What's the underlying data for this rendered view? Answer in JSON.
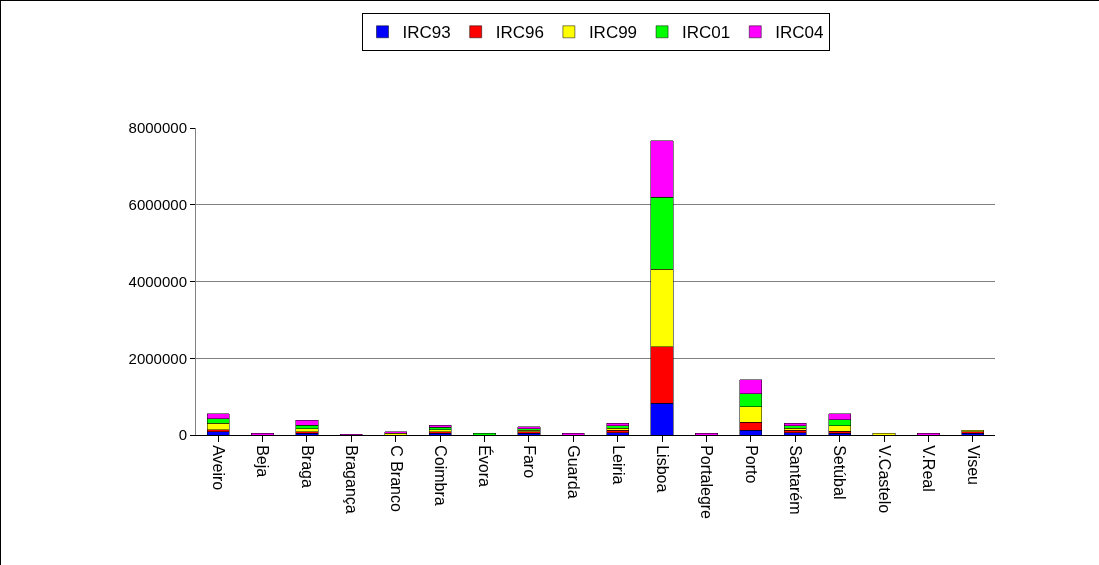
{
  "chart_data": {
    "type": "bar",
    "stacked": true,
    "categories": [
      "Aveiro",
      "Beja",
      "Braga",
      "Bragança",
      "C Branco",
      "Coimbra",
      "Évora",
      "Faro",
      "Guarda",
      "Leiria",
      "Lisboa",
      "Portalegre",
      "Porto",
      "Santarém",
      "Setúbal",
      "V.Castelo",
      "V.Real",
      "Viseu"
    ],
    "series": [
      {
        "name": "IRC93",
        "color": "#0000ff",
        "values": [
          80000,
          null,
          40000,
          null,
          null,
          40000,
          null,
          40000,
          null,
          60000,
          830000,
          null,
          130000,
          60000,
          40000,
          null,
          null,
          40000
        ]
      },
      {
        "name": "IRC96",
        "color": "#ff0000",
        "values": [
          60000,
          null,
          40000,
          null,
          null,
          40000,
          null,
          40000,
          null,
          60000,
          1470000,
          null,
          200000,
          60000,
          60000,
          null,
          null,
          40000
        ]
      },
      {
        "name": "IRC99",
        "color": "#ffff00",
        "values": [
          160000,
          null,
          80000,
          null,
          40000,
          60000,
          null,
          40000,
          null,
          60000,
          2020000,
          null,
          400000,
          60000,
          140000,
          40000,
          null,
          40000
        ]
      },
      {
        "name": "IRC01",
        "color": "#00ff00",
        "values": [
          120000,
          null,
          100000,
          null,
          null,
          60000,
          40000,
          40000,
          null,
          60000,
          1880000,
          null,
          350000,
          60000,
          160000,
          null,
          null,
          null
        ]
      },
      {
        "name": "IRC04",
        "color": "#ff00ff",
        "values": [
          140000,
          40000,
          120000,
          20000,
          40000,
          60000,
          null,
          60000,
          40000,
          60000,
          1470000,
          40000,
          360000,
          60000,
          160000,
          null,
          40000,
          null
        ]
      }
    ],
    "ylim": [
      0,
      8000000
    ],
    "yticks": [
      0,
      2000000,
      4000000,
      6000000,
      8000000
    ],
    "grid": "y",
    "legend": "top"
  }
}
